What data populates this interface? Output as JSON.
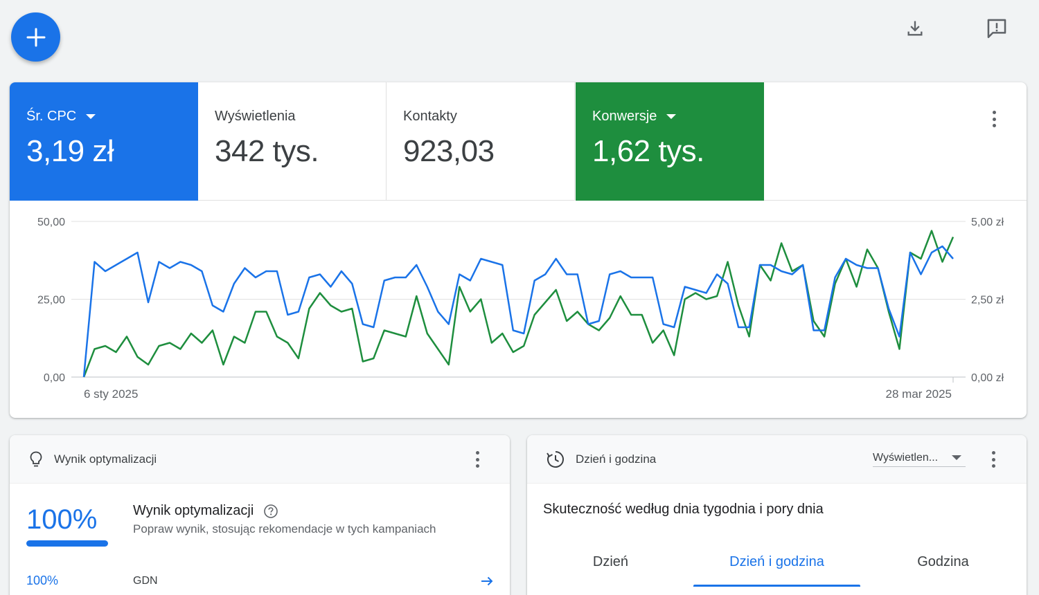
{
  "toolbar": {
    "add_icon": "plus-icon",
    "download_icon": "download-icon",
    "feedback_icon": "feedback-icon"
  },
  "metrics": [
    {
      "label": "Śr. CPC",
      "value": "3,19 zł",
      "selected": true,
      "color": "#1a73e8",
      "has_dropdown": true
    },
    {
      "label": "Wyświetlenia",
      "value": "342 tys.",
      "selected": false,
      "has_dropdown": false
    },
    {
      "label": "Kontakty",
      "value": "923,03",
      "selected": false,
      "has_dropdown": false
    },
    {
      "label": "Konwersje",
      "value": "1,62 tys.",
      "selected": true,
      "color": "#1e8e3e",
      "has_dropdown": true
    }
  ],
  "chart_data": {
    "type": "line",
    "x_start_label": "6 sty 2025",
    "x_end_label": "28 mar 2025",
    "left_axis": {
      "ticks": [
        "50,00",
        "25,00",
        "0,00"
      ],
      "ylim": [
        0,
        50
      ]
    },
    "right_axis": {
      "ticks": [
        "5,00 zł",
        "2,50 zł",
        "0,00 zł"
      ],
      "ylim": [
        0,
        5
      ]
    },
    "grid": true,
    "series": [
      {
        "color": "#1a73e8",
        "axis": "left",
        "values": [
          0,
          37,
          34,
          36,
          38,
          40,
          24,
          37,
          35,
          37,
          36,
          34,
          23,
          21,
          30,
          35,
          32,
          34,
          34,
          20,
          21,
          32,
          33,
          29,
          34,
          30,
          17,
          16,
          31,
          32,
          32,
          36,
          29,
          21,
          17,
          33,
          31,
          38,
          37,
          36,
          15,
          14,
          31,
          33,
          38,
          33,
          33,
          17,
          18,
          33,
          34,
          32,
          32,
          32,
          17,
          16,
          29,
          28,
          27,
          33,
          30,
          16,
          16,
          36,
          36,
          34,
          33,
          36,
          15,
          15,
          32,
          38,
          36,
          35,
          35,
          22,
          13,
          40,
          33,
          40,
          42,
          38
        ]
      },
      {
        "color": "#1e8e3e",
        "axis": "right",
        "values": [
          0,
          0.9,
          1.0,
          0.8,
          1.3,
          0.65,
          0.4,
          1.0,
          1.1,
          0.9,
          1.4,
          1.1,
          1.5,
          0.4,
          1.3,
          1.1,
          2.1,
          2.1,
          1.3,
          1.1,
          0.6,
          2.2,
          2.7,
          2.3,
          2.1,
          2.2,
          0.5,
          0.6,
          1.5,
          1.4,
          1.3,
          2.6,
          1.4,
          0.9,
          0.4,
          2.9,
          2.1,
          2.5,
          1.1,
          1.4,
          0.8,
          1.0,
          2.0,
          2.4,
          2.8,
          1.8,
          2.1,
          1.7,
          1.5,
          1.9,
          2.6,
          2.0,
          2.0,
          1.1,
          1.5,
          0.7,
          2.5,
          2.7,
          2.5,
          2.6,
          3.7,
          2.3,
          1.3,
          3.6,
          3.1,
          4.3,
          3.4,
          3.6,
          1.8,
          1.3,
          3.0,
          3.8,
          2.9,
          4.1,
          3.5,
          2.1,
          0.9,
          4.0,
          3.8,
          4.7,
          3.7,
          4.5
        ]
      }
    ]
  },
  "optimization": {
    "header_title": "Wynik optymalizacji",
    "header_icon": "lightbulb-icon",
    "score": "100%",
    "score_fraction": 1.0,
    "title": "Wynik optymalizacji",
    "help_icon": "help-icon",
    "subtitle": "Popraw wynik, stosując rekomendacje w tych kampaniach",
    "rows": [
      {
        "pct": "100%",
        "name": "GDN"
      }
    ]
  },
  "day_time": {
    "header_title": "Dzień i godzina",
    "header_icon": "schedule-icon",
    "select_value": "Wyświetlen...",
    "title": "Skuteczność według dnia tygodnia i pory dnia",
    "tabs": [
      {
        "label": "Dzień",
        "active": false
      },
      {
        "label": "Dzień i godzina",
        "active": true
      },
      {
        "label": "Godzina",
        "active": false
      }
    ]
  }
}
